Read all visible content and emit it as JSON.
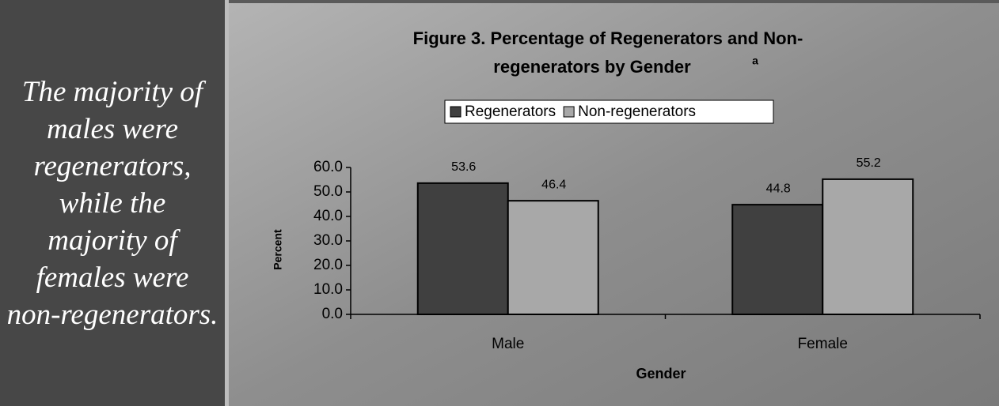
{
  "sidebar": {
    "lines": [
      "The majority of",
      "males were",
      "regenerators,",
      "while the",
      "majority of",
      "females were",
      "non-regenerators."
    ]
  },
  "chart_data": {
    "type": "bar",
    "title_lines": [
      "Figure 3.  Percentage of Regenerators and Non-",
      "regenerators by Gender"
    ],
    "title_note": "a",
    "x_label": "Gender",
    "y_label": "Percent",
    "categories": [
      "Male",
      "Female"
    ],
    "series": [
      {
        "name": "Regenerators",
        "color": "#404040",
        "values": [
          53.6,
          44.8
        ]
      },
      {
        "name": "Non-regenerators",
        "color": "#a8a8a8",
        "values": [
          46.4,
          55.2
        ]
      }
    ],
    "ylim": [
      0,
      60
    ],
    "yticks": [
      {
        "value": 0,
        "label": "0.0"
      },
      {
        "value": 10,
        "label": "10.0"
      },
      {
        "value": 20,
        "label": "20.0"
      },
      {
        "value": 30,
        "label": "30.0"
      },
      {
        "value": 40,
        "label": "40.0"
      },
      {
        "value": 50,
        "label": "50.0"
      },
      {
        "value": 60,
        "label": "60.0"
      }
    ],
    "legend": "top"
  }
}
